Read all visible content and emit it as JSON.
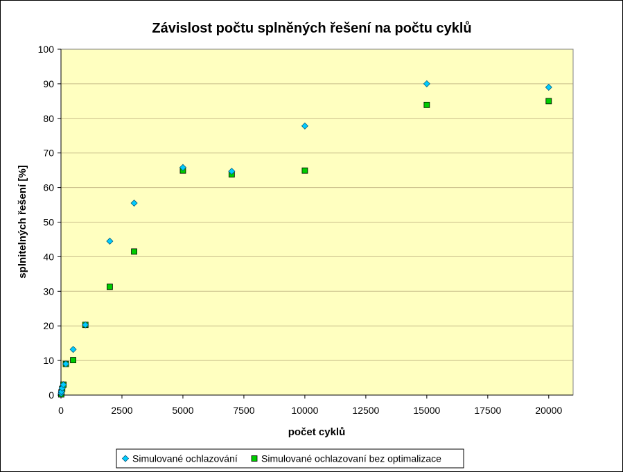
{
  "chart_data": {
    "type": "scatter",
    "title": "Závislost počtu splněných řešení na počtu cyklů",
    "xlabel": "počet cyklů",
    "ylabel": "splnitelných řešení [%]",
    "xlim": [
      0,
      21000
    ],
    "ylim": [
      0,
      100
    ],
    "x_ticks": [
      0,
      2500,
      5000,
      7500,
      10000,
      12500,
      15000,
      17500,
      20000
    ],
    "y_ticks": [
      0,
      10,
      20,
      30,
      40,
      50,
      60,
      70,
      80,
      90,
      100
    ],
    "grid": "horizontal",
    "legend_position": "bottom",
    "plot_background": "#ffffc0",
    "grid_color": "#c8bd8a",
    "series": [
      {
        "name": "Simulované ochlazování",
        "marker": "diamond",
        "color": "#00ccff",
        "points": [
          [
            10,
            0.5
          ],
          [
            20,
            1
          ],
          [
            50,
            2
          ],
          [
            100,
            3
          ],
          [
            200,
            9
          ],
          [
            500,
            13.2
          ],
          [
            1000,
            20.3
          ],
          [
            2000,
            44.5
          ],
          [
            3000,
            55.5
          ],
          [
            5000,
            65.8
          ],
          [
            7000,
            64.7
          ],
          [
            10000,
            77.8
          ],
          [
            15000,
            90
          ],
          [
            20000,
            89
          ]
        ]
      },
      {
        "name": "Simulované ochlazovaní bez optimalizace",
        "marker": "square",
        "color": "#00cc00",
        "points": [
          [
            10,
            0.2
          ],
          [
            20,
            0.8
          ],
          [
            50,
            1.8
          ],
          [
            100,
            3
          ],
          [
            200,
            9
          ],
          [
            500,
            10.1
          ],
          [
            1000,
            20.3
          ],
          [
            2000,
            31.3
          ],
          [
            3000,
            41.5
          ],
          [
            5000,
            64.9
          ],
          [
            7000,
            63.8
          ],
          [
            10000,
            64.9
          ],
          [
            15000,
            83.9
          ],
          [
            20000,
            85
          ]
        ]
      }
    ]
  }
}
